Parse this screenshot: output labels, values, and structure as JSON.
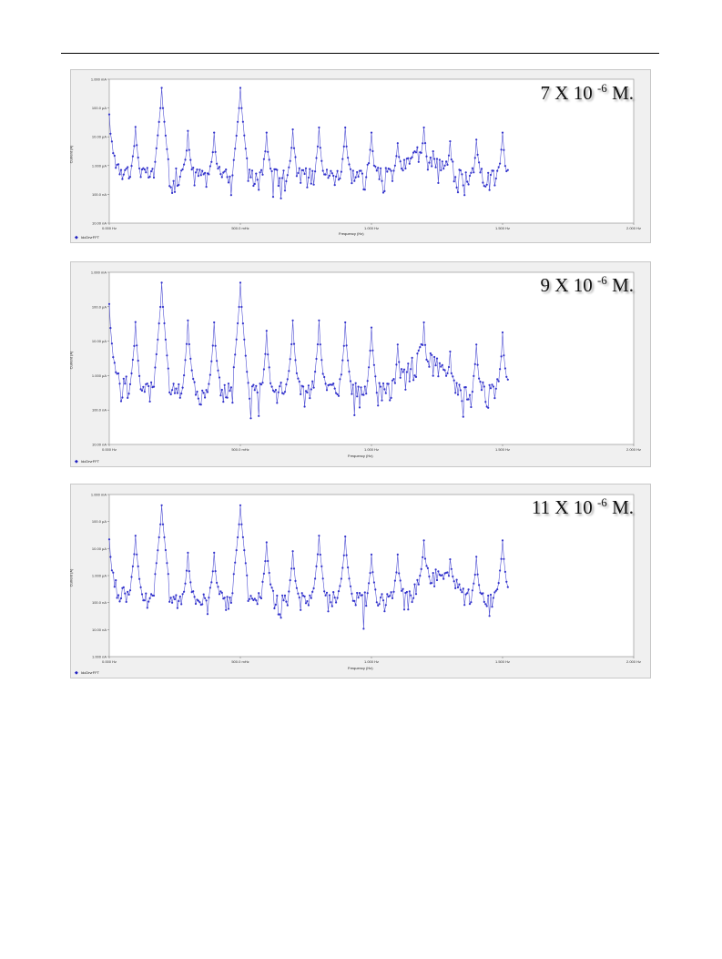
{
  "chart_data": [
    {
      "type": "line",
      "annotation": {
        "base": "7 X 10",
        "exponent": "-6",
        "suffix": " M."
      },
      "xlabel": "Frequency (Hz)",
      "ylabel": "Current (A)",
      "xlim": [
        0,
        2000
      ],
      "yscale": "log",
      "ylim": [
        1e-08,
        0.001
      ],
      "xtick_labels": [
        "0.000 Hz",
        "500.0 mHz",
        "1.000 Hz",
        "1.500 Hz",
        "2.000 Hz"
      ],
      "ytick_labels": [
        "1.000 mA",
        "100.0 µA",
        "10.00 µA",
        "1.000 µA",
        "100.0 nA",
        "10.00 nA"
      ],
      "legend": "IdcDrvrFFT",
      "legend_position": "bottom-left",
      "grid": false,
      "noise_level": 5e-07,
      "bumps": [
        {
          "center": 1200,
          "width": 60,
          "height": 2.5e-06
        }
      ],
      "peaks": [
        {
          "x": 0,
          "y": 6e-05
        },
        {
          "x": 100,
          "y": 2.2e-05
        },
        {
          "x": 200,
          "y": 0.0005
        },
        {
          "x": 300,
          "y": 1.6e-05
        },
        {
          "x": 400,
          "y": 1.4e-05
        },
        {
          "x": 500,
          "y": 0.0005
        },
        {
          "x": 600,
          "y": 1.4e-05
        },
        {
          "x": 700,
          "y": 1.8e-05
        },
        {
          "x": 800,
          "y": 2.1e-05
        },
        {
          "x": 900,
          "y": 2.1e-05
        },
        {
          "x": 1000,
          "y": 1.4e-05
        },
        {
          "x": 1100,
          "y": 6e-06
        },
        {
          "x": 1200,
          "y": 2.1e-05
        },
        {
          "x": 1300,
          "y": 7e-06
        },
        {
          "x": 1400,
          "y": 8e-06
        },
        {
          "x": 1500,
          "y": 1.4e-05
        }
      ]
    },
    {
      "type": "line",
      "annotation": {
        "base": "9 X 10",
        "exponent": "-6",
        "suffix": " M."
      },
      "xlabel": "Frequency (Hz)",
      "ylabel": "Current (A)",
      "xlim": [
        0,
        2000
      ],
      "yscale": "log",
      "ylim": [
        1e-08,
        0.001
      ],
      "xtick_labels": [
        "0.000 Hz",
        "500.0 mHz",
        "1.000 Hz",
        "1.500 Hz",
        "2.000 Hz"
      ],
      "ytick_labels": [
        "1.000 mA",
        "100.0 µA",
        "10.00 µA",
        "1.000 µA",
        "100.0 nA",
        "10.00 nA"
      ],
      "legend": "IdcDrvrFFT",
      "legend_position": "bottom-left",
      "grid": false,
      "noise_level": 4e-07,
      "bumps": [
        {
          "center": 1200,
          "width": 60,
          "height": 3.5e-06
        }
      ],
      "peaks": [
        {
          "x": 0,
          "y": 0.00012
        },
        {
          "x": 100,
          "y": 3.6e-05
        },
        {
          "x": 200,
          "y": 0.0005
        },
        {
          "x": 300,
          "y": 4e-05
        },
        {
          "x": 400,
          "y": 3.5e-05
        },
        {
          "x": 500,
          "y": 0.0005
        },
        {
          "x": 600,
          "y": 2e-05
        },
        {
          "x": 700,
          "y": 4e-05
        },
        {
          "x": 800,
          "y": 4e-05
        },
        {
          "x": 900,
          "y": 3.5e-05
        },
        {
          "x": 1000,
          "y": 2.5e-05
        },
        {
          "x": 1100,
          "y": 8e-06
        },
        {
          "x": 1200,
          "y": 3.5e-05
        },
        {
          "x": 1300,
          "y": 5e-06
        },
        {
          "x": 1400,
          "y": 8e-06
        },
        {
          "x": 1500,
          "y": 1.8e-05
        }
      ]
    },
    {
      "type": "line",
      "annotation": {
        "base": "11 X 10",
        "exponent": "-6",
        "suffix": " M."
      },
      "xlabel": "Frequency (Hz)",
      "ylabel": "Current (A)",
      "xlim": [
        0,
        2000
      ],
      "yscale": "log",
      "ylim": [
        1e-09,
        0.001
      ],
      "xtick_labels": [
        "0.000 Hz",
        "500.0 mHz",
        "1.000 Hz",
        "1.500 Hz",
        "2.000 Hz"
      ],
      "ytick_labels": [
        "1.000 mA",
        "100.0 µA",
        "10.00 µA",
        "1.000 µA",
        "100.0 nA",
        "10.00 nA",
        "1.000 nA"
      ],
      "legend": "IdcDrvrFFT",
      "legend_position": "bottom-left",
      "grid": false,
      "noise_level": 1.5e-07,
      "bumps": [
        {
          "center": 1250,
          "width": 70,
          "height": 1e-06
        }
      ],
      "peaks": [
        {
          "x": 0,
          "y": 2.2e-05
        },
        {
          "x": 100,
          "y": 3e-05
        },
        {
          "x": 200,
          "y": 0.0004
        },
        {
          "x": 300,
          "y": 7e-06
        },
        {
          "x": 400,
          "y": 7e-06
        },
        {
          "x": 500,
          "y": 0.0004
        },
        {
          "x": 600,
          "y": 1.7e-05
        },
        {
          "x": 700,
          "y": 8e-06
        },
        {
          "x": 800,
          "y": 3e-05
        },
        {
          "x": 900,
          "y": 2.8e-05
        },
        {
          "x": 1000,
          "y": 6e-06
        },
        {
          "x": 1100,
          "y": 6e-06
        },
        {
          "x": 1200,
          "y": 2e-05
        },
        {
          "x": 1300,
          "y": 4e-06
        },
        {
          "x": 1400,
          "y": 5e-06
        },
        {
          "x": 1500,
          "y": 2e-05
        }
      ]
    }
  ],
  "series_color": "#3333cc"
}
